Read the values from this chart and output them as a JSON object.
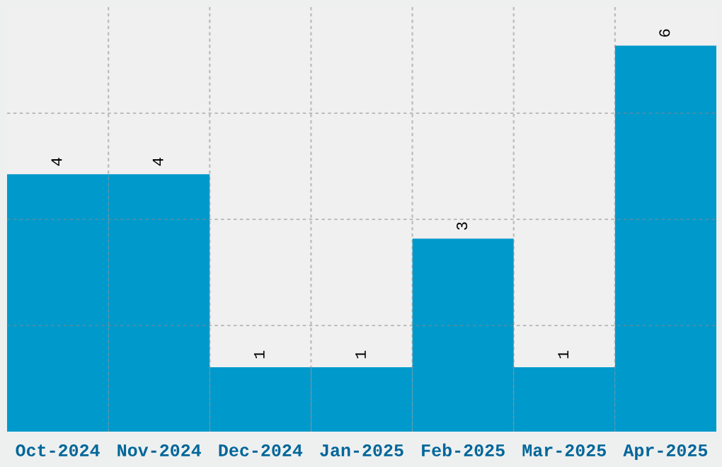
{
  "chart_data": {
    "type": "bar",
    "categories": [
      "Oct-2024",
      "Nov-2024",
      "Dec-2024",
      "Jan-2025",
      "Feb-2025",
      "Mar-2025",
      "Apr-2025"
    ],
    "values": [
      4,
      4,
      1,
      1,
      3,
      1,
      6
    ],
    "color": "#0099cc",
    "ylim": [
      0,
      6.6
    ],
    "yticks": [
      {
        "value": 1.65,
        "label": null
      },
      {
        "value": 3.3,
        "label": null
      },
      {
        "value": 4.95,
        "label": null
      }
    ],
    "tick_labels": "x",
    "grid": true,
    "data_labels": true
  }
}
